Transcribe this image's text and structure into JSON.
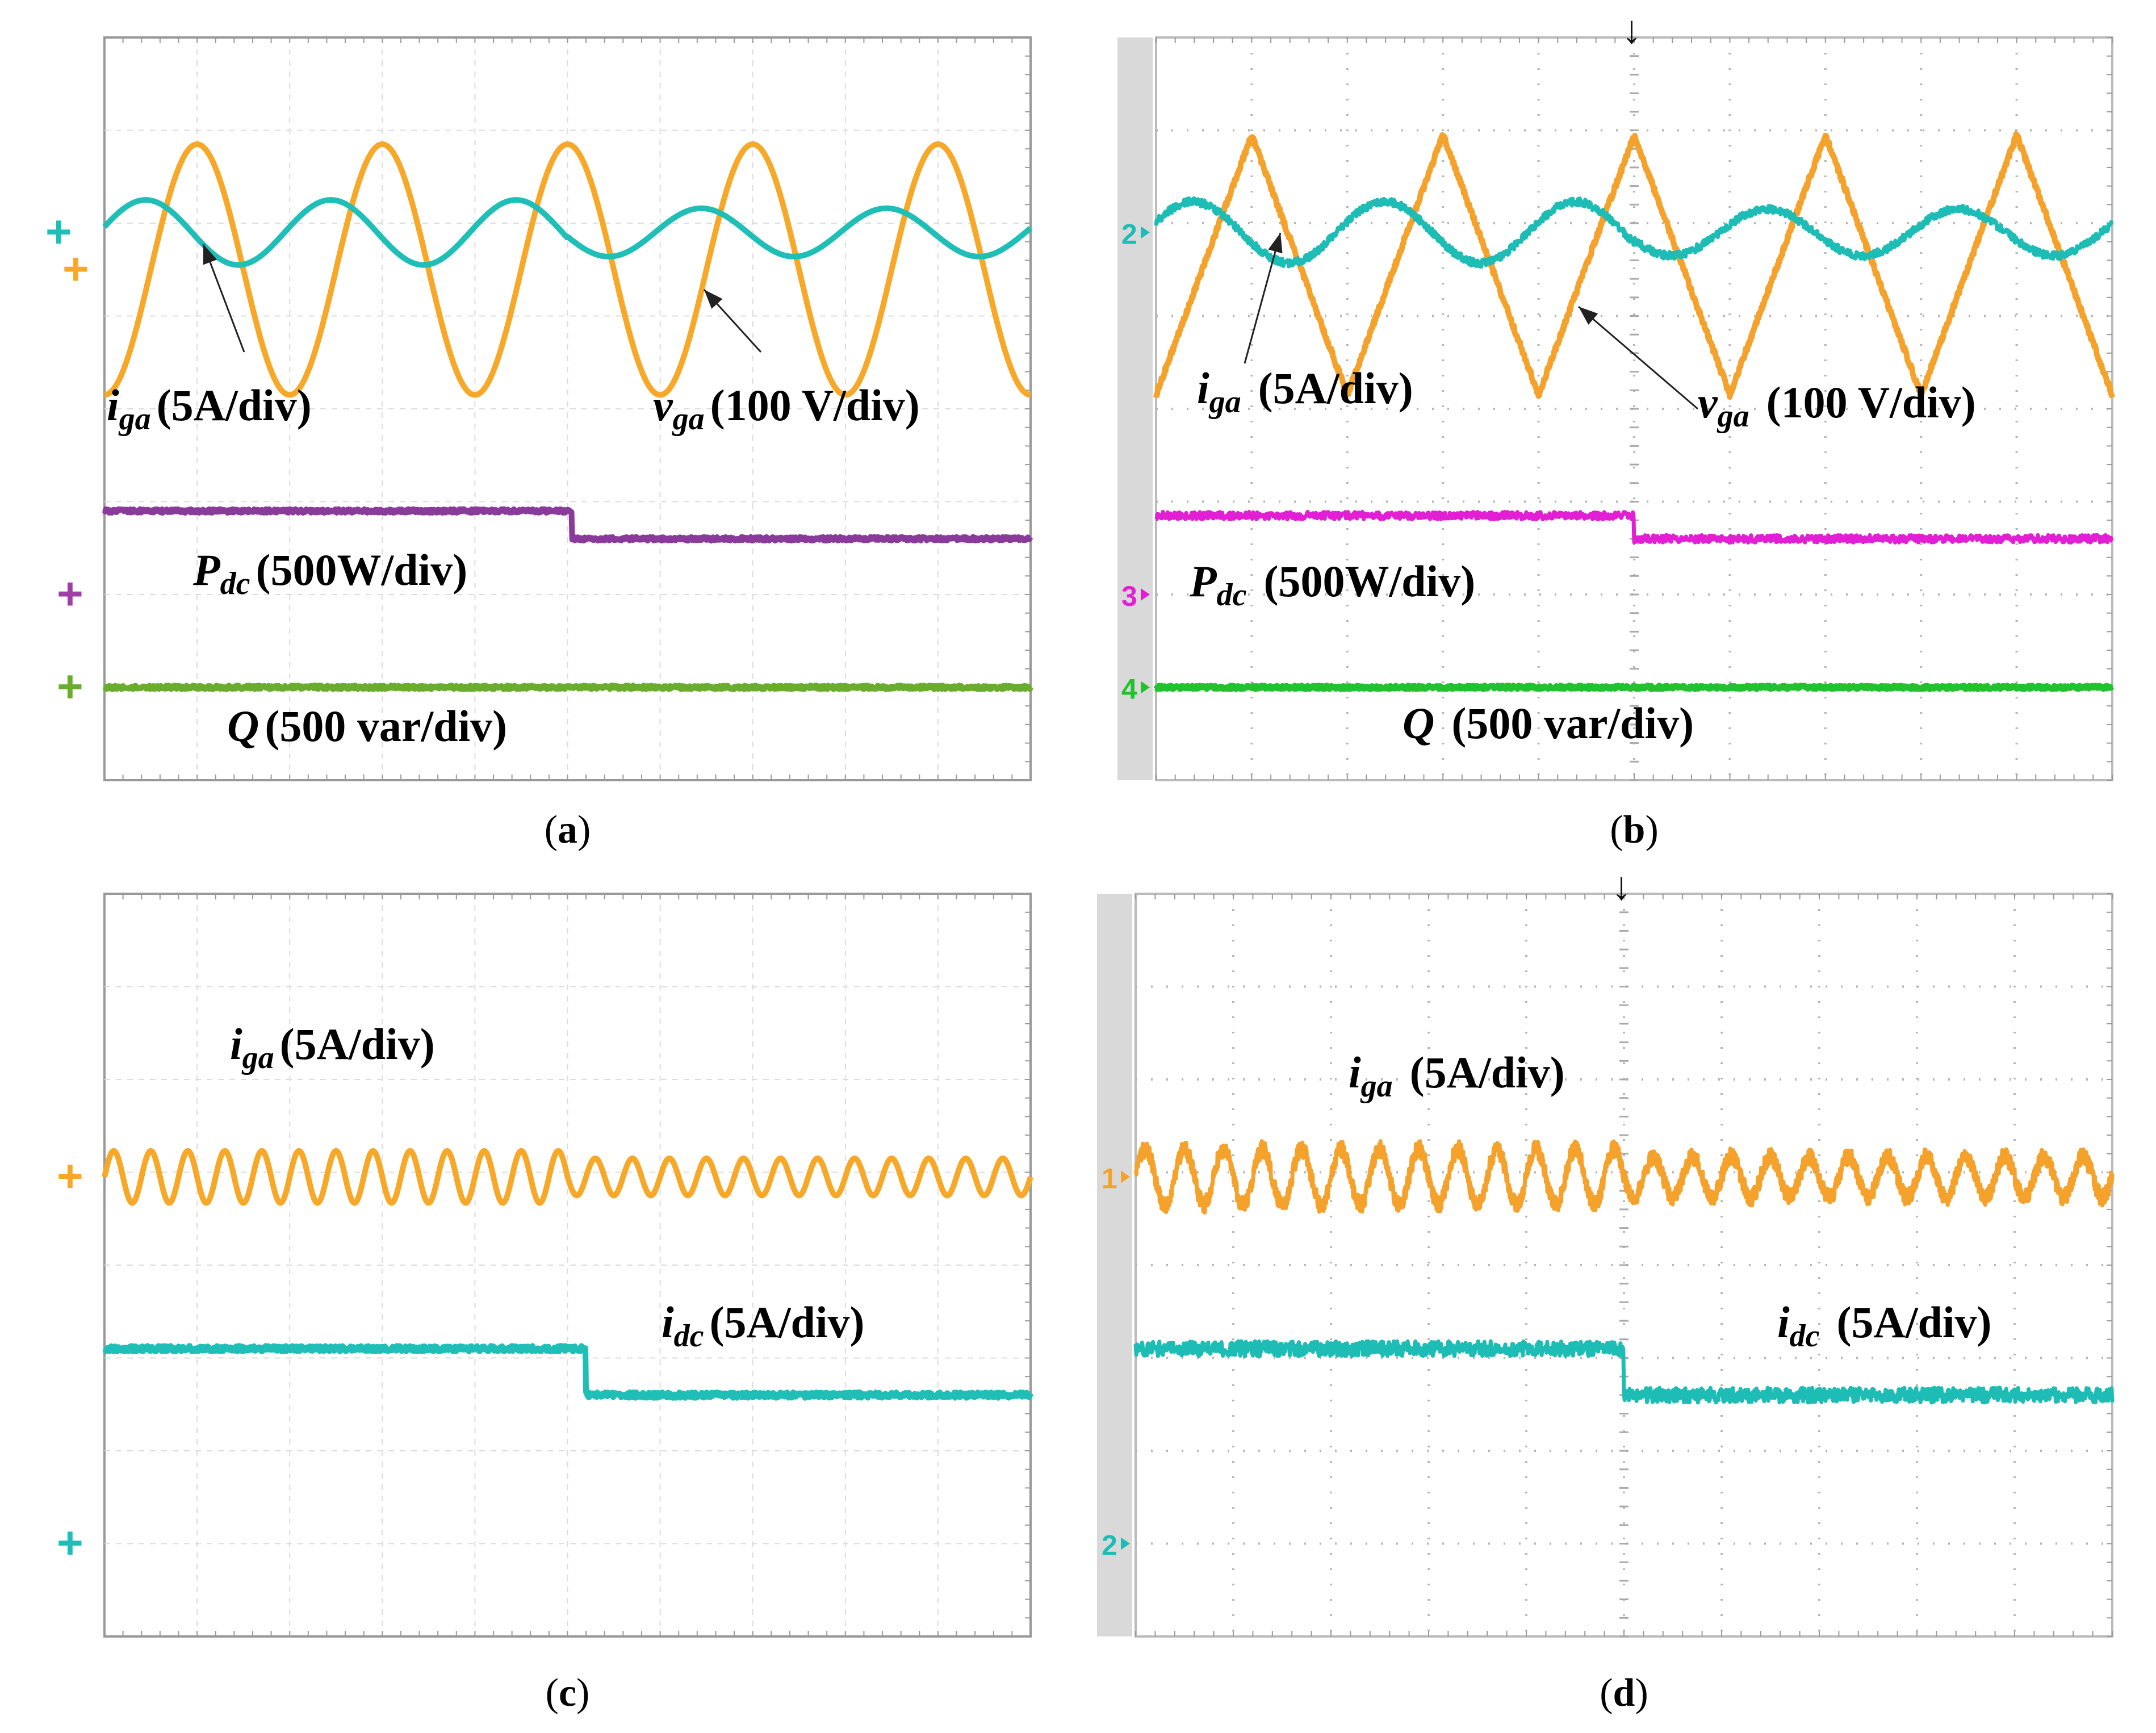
{
  "chart_data": [
    {
      "panel": "a",
      "type": "line",
      "caption": "a",
      "source": "simulation",
      "grid": true,
      "divisions": {
        "x": 10,
        "y": 8
      },
      "series": [
        {
          "key": "vga",
          "name": "v_ga",
          "subscript": "ga",
          "base": "v",
          "label": "(100 V/div)",
          "color": "#f7a828",
          "kind": "sine",
          "center_div": 5.5,
          "amp_div": 1.35,
          "cycles": 5,
          "phase_deg": -90,
          "step_at_div": null,
          "ripple": 0
        },
        {
          "key": "iga",
          "name": "i_ga",
          "subscript": "ga",
          "base": "i",
          "label": "(5A/div)",
          "color": "#1fbfb8",
          "kind": "sine",
          "center_div": 5.9,
          "amp_div": 0.35,
          "cycles": 5,
          "phase_deg": 10,
          "step_at_div": 5.0,
          "amp_after_div": 0.26,
          "ripple": 0
        },
        {
          "key": "pdc",
          "name": "P_dc",
          "subscript": "dc",
          "base": "P",
          "label": "(500W/div)",
          "color": "#8a3a9a",
          "kind": "step",
          "level_div": 2.9,
          "level_after_div": 2.6,
          "step_at_div": 5.05,
          "ripple": 0.02
        },
        {
          "key": "q",
          "name": "Q",
          "subscript": "",
          "base": "Q",
          "label": "(500 var/div)",
          "color": "#6aac2c",
          "kind": "flat",
          "level_div": 1.0,
          "ripple": 0.02
        }
      ],
      "markers": [
        {
          "key": "vga",
          "text": "+",
          "color": "#f7a828"
        },
        {
          "key": "iga",
          "text": "+",
          "color": "#1fbfb8"
        },
        {
          "key": "pdc",
          "text": "+",
          "color": "#a03ea8"
        },
        {
          "key": "q",
          "text": "+",
          "color": "#6aac2c"
        }
      ]
    },
    {
      "panel": "b",
      "type": "line",
      "caption": "b",
      "source": "experiment",
      "grid": true,
      "divisions": {
        "x": 10,
        "y": 8
      },
      "trigger_marker": "↓",
      "series": [
        {
          "key": "vga",
          "name": "v_ga",
          "subscript": "ga",
          "base": "v",
          "label": "(100 V/div)",
          "color": "#f5a22c",
          "kind": "triwave",
          "center_div": 5.55,
          "amp_div": 1.4,
          "cycles": 5,
          "phase_deg": -90,
          "ripple": 0.03
        },
        {
          "key": "iga",
          "name": "i_ga",
          "subscript": "ga",
          "base": "i",
          "label": "(5A/div)",
          "color": "#1dbdb6",
          "kind": "sine",
          "center_div": 5.9,
          "amp_div": 0.33,
          "cycles": 5,
          "phase_deg": 20,
          "step_at_div": 5.0,
          "amp_after_div": 0.25,
          "ripple": 0.04
        },
        {
          "key": "pdc",
          "name": "P_dc",
          "subscript": "dc",
          "base": "P",
          "label": "(500W/div)",
          "color": "#e21fd4",
          "kind": "step",
          "level_div": 2.85,
          "level_after_div": 2.6,
          "step_at_div": 5.0,
          "ripple": 0.04
        },
        {
          "key": "q",
          "name": "Q",
          "subscript": "",
          "base": "Q",
          "label": "(500 var/div)",
          "color": "#22c22e",
          "kind": "flat",
          "level_div": 1.0,
          "ripple": 0.02
        }
      ],
      "markers": [
        {
          "key": "iga",
          "text": "2",
          "color": "#1dbdb6"
        },
        {
          "key": "pdc",
          "text": "3",
          "color": "#e21fd4"
        },
        {
          "key": "q",
          "text": "4",
          "color": "#22c22e"
        }
      ]
    },
    {
      "panel": "c",
      "type": "line",
      "caption": "c",
      "source": "simulation",
      "grid": true,
      "divisions": {
        "x": 10,
        "y": 8
      },
      "series": [
        {
          "key": "iga",
          "name": "i_ga",
          "subscript": "ga",
          "base": "i",
          "label": "(5A/div)",
          "color": "#f7a828",
          "kind": "sine",
          "center_div": 4.95,
          "amp_div": 0.28,
          "cycles": 25,
          "phase_deg": 0,
          "step_at_div": 5.0,
          "amp_after_div": 0.2,
          "ripple": 0
        },
        {
          "key": "idc",
          "name": "i_dc",
          "subscript": "dc",
          "base": "i",
          "label": "(5A/div)",
          "color": "#1fbfb8",
          "kind": "step",
          "level_div": 3.1,
          "level_after_div": 2.6,
          "step_at_div": 5.2,
          "ripple": 0.03
        }
      ],
      "markers": [
        {
          "key": "iga",
          "text": "+",
          "color": "#f7a828"
        },
        {
          "key": "idc",
          "text": "+",
          "color": "#1fbfb8"
        }
      ]
    },
    {
      "panel": "d",
      "type": "line",
      "caption": "d",
      "source": "experiment",
      "grid": true,
      "divisions": {
        "x": 10,
        "y": 8
      },
      "trigger_marker": "↓",
      "series": [
        {
          "key": "iga",
          "name": "i_ga",
          "subscript": "ga",
          "base": "i",
          "label": "(5A/div)",
          "color": "#f5a22c",
          "kind": "sine",
          "center_div": 4.95,
          "amp_div": 0.3,
          "cycles": 25,
          "phase_deg": 0,
          "step_at_div": 5.0,
          "amp_after_div": 0.22,
          "ripple": 0.09
        },
        {
          "key": "idc",
          "name": "i_dc",
          "subscript": "dc",
          "base": "i",
          "label": "(5A/div)",
          "color": "#1dbdb6",
          "kind": "step",
          "level_div": 3.1,
          "level_after_div": 2.6,
          "step_at_div": 5.0,
          "ripple": 0.08
        }
      ],
      "markers": [
        {
          "key": "iga",
          "text": "1",
          "color": "#f5a22c"
        },
        {
          "key": "idc",
          "text": "2",
          "color": "#1dbdb6"
        }
      ]
    }
  ]
}
